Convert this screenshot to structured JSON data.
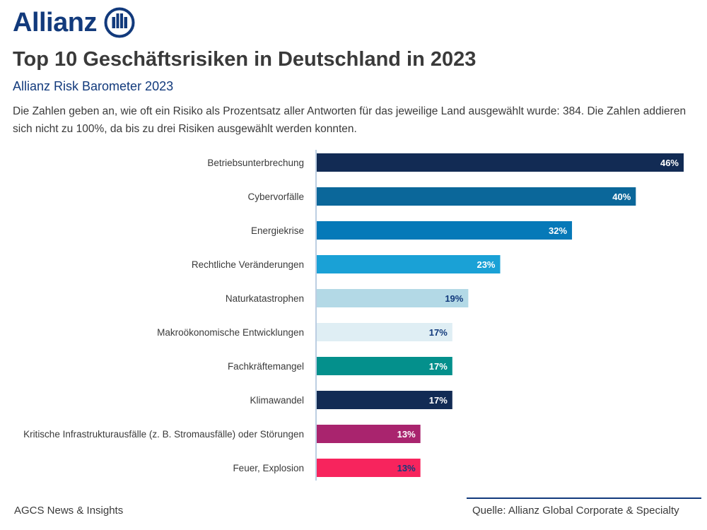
{
  "logo": {
    "text": "Allianz"
  },
  "title": "Top 10 Geschäftsrisiken in Deutschland in 2023",
  "subtitle": "Allianz Risk Barometer 2023",
  "description": "Die Zahlen geben an, wie oft ein Risiko als Prozentsatz aller Antworten für das jeweilige Land ausgewählt wurde: 384. Die Zahlen addieren sich nicht zu 100%, da bis zu drei Risiken ausgewählt werden konnten.",
  "footer": {
    "left": "AGCS News & Insights",
    "right": "Quelle: Allianz Global Corporate & Specialty"
  },
  "colors": {
    "brand": "#123a7c"
  },
  "chart_data": {
    "type": "bar",
    "orientation": "horizontal",
    "categories": [
      "Betriebsunterbrechung",
      "Cybervorfälle",
      "Energiekrise",
      "Rechtliche Veränderungen",
      "Naturkatastrophen",
      "Makroökonomische Entwicklungen",
      "Fachkräftemangel",
      "Klimawandel",
      "Kritische Infrastrukturausfälle (z. B. Stromausfälle) oder Störungen",
      "Feuer, Explosion"
    ],
    "values": [
      46,
      40,
      32,
      23,
      19,
      17,
      17,
      17,
      13,
      13
    ],
    "labels": [
      "46%",
      "40%",
      "32%",
      "23%",
      "19%",
      "17%",
      "17%",
      "17%",
      "13%",
      "13%"
    ],
    "bar_colors": [
      "#122b54",
      "#0b679a",
      "#0679b8",
      "#1aa1d6",
      "#b3d9e6",
      "#dfeef4",
      "#04908c",
      "#122b54",
      "#a9246e",
      "#f7245d"
    ],
    "label_colors": [
      "#ffffff",
      "#ffffff",
      "#ffffff",
      "#ffffff",
      "#123a7c",
      "#123a7c",
      "#ffffff",
      "#ffffff",
      "#ffffff",
      "#123a7c"
    ],
    "xlim": [
      0,
      46
    ],
    "grid": false,
    "legend": "none"
  }
}
